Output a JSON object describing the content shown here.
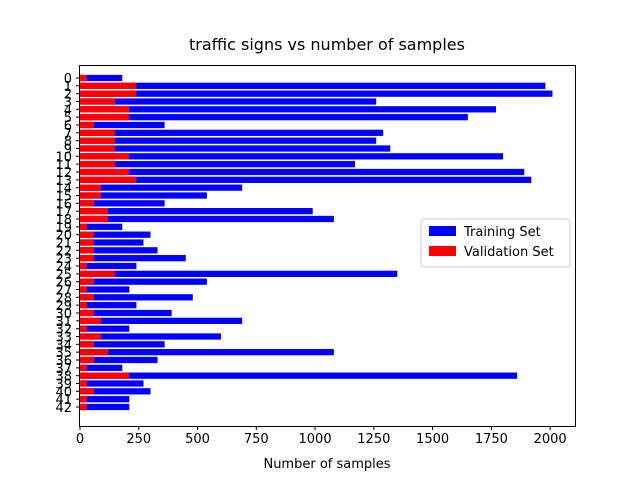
{
  "chart_data": {
    "type": "bar",
    "orientation": "horizontal",
    "title": "traffic signs vs number of samples",
    "xlabel": "Number of samples",
    "ylabel": "",
    "xlim": [
      0,
      2110
    ],
    "xticks": [
      0,
      250,
      500,
      750,
      1000,
      1250,
      1500,
      1750,
      2000
    ],
    "categories": [
      "0",
      "1",
      "2",
      "3",
      "4",
      "5",
      "6",
      "7",
      "8",
      "9",
      "10",
      "11",
      "12",
      "13",
      "14",
      "15",
      "16",
      "17",
      "18",
      "19",
      "20",
      "21",
      "22",
      "23",
      "24",
      "25",
      "26",
      "27",
      "28",
      "29",
      "30",
      "31",
      "32",
      "33",
      "34",
      "35",
      "36",
      "37",
      "38",
      "39",
      "40",
      "41",
      "42"
    ],
    "series": [
      {
        "name": "Training Set",
        "color": "#0000ff",
        "values": [
          180,
          1980,
          2010,
          1260,
          1770,
          1650,
          360,
          1290,
          1260,
          1320,
          1800,
          1170,
          1890,
          1920,
          690,
          540,
          360,
          990,
          1080,
          180,
          300,
          270,
          330,
          450,
          240,
          1350,
          540,
          210,
          480,
          240,
          390,
          690,
          210,
          600,
          360,
          1080,
          330,
          180,
          1860,
          270,
          300,
          210,
          210
        ]
      },
      {
        "name": "Validation Set",
        "color": "#ff0000",
        "values": [
          30,
          240,
          240,
          150,
          210,
          210,
          60,
          150,
          150,
          150,
          210,
          150,
          210,
          240,
          90,
          90,
          60,
          120,
          120,
          30,
          60,
          60,
          60,
          60,
          30,
          150,
          60,
          30,
          60,
          30,
          60,
          90,
          30,
          90,
          60,
          120,
          60,
          30,
          210,
          30,
          60,
          30,
          30
        ]
      }
    ],
    "legend": {
      "position": "center-right",
      "entries": [
        "Training Set",
        "Validation Set"
      ]
    },
    "grid": false
  }
}
